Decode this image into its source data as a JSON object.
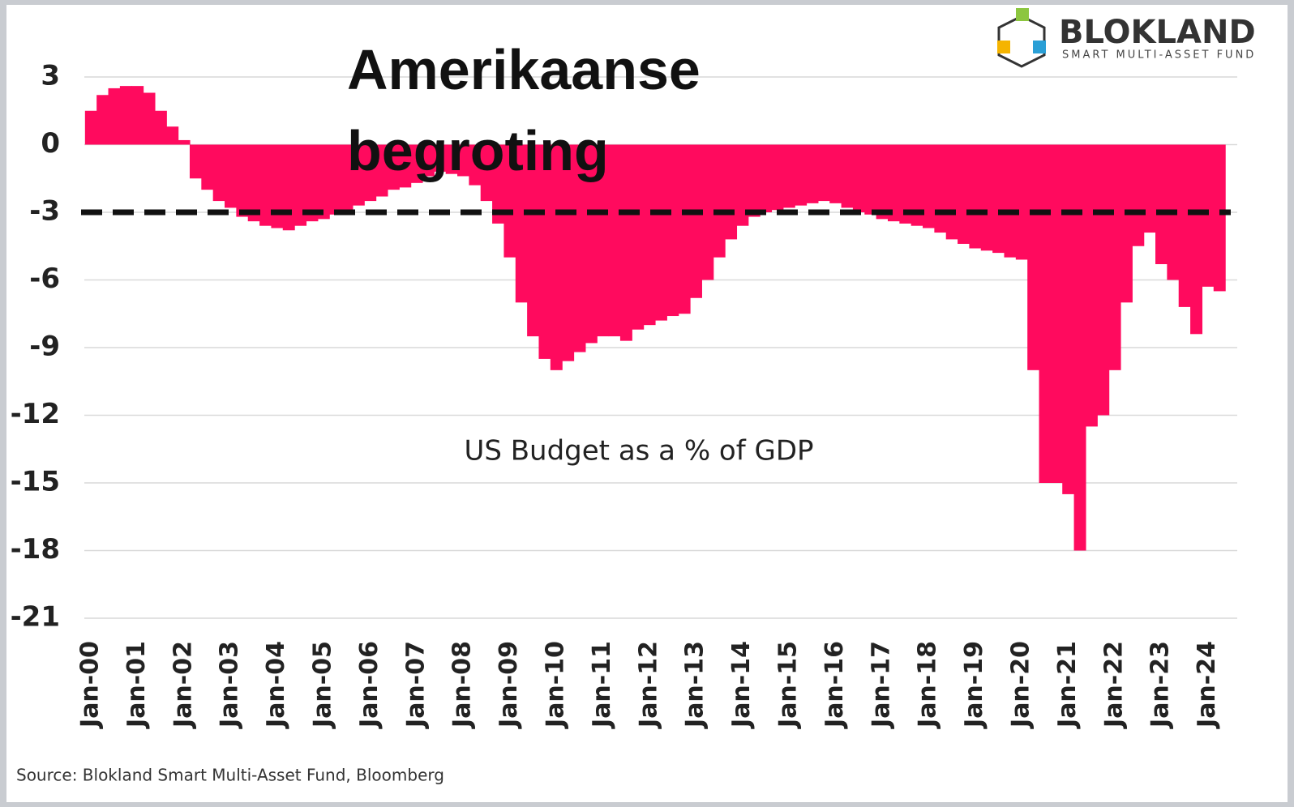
{
  "chart_data": {
    "type": "bar",
    "title": "Amerikaanse begroting",
    "annotation": "US Budget as a % of GDP",
    "source": "Source: Blokland Smart Multi-Asset Fund, Bloomberg",
    "logo": {
      "name": "BLOKLAND",
      "tagline": "SMART MULTI-ASSET FUND"
    },
    "categories": [
      "Jan-00",
      null,
      null,
      null,
      "Jan-01",
      null,
      null,
      null,
      "Jan-02",
      null,
      null,
      null,
      "Jan-03",
      null,
      null,
      null,
      "Jan-04",
      null,
      null,
      null,
      "Jan-05",
      null,
      null,
      null,
      "Jan-06",
      null,
      null,
      null,
      "Jan-07",
      null,
      null,
      null,
      "Jan-08",
      null,
      null,
      null,
      "Jan-09",
      null,
      null,
      null,
      "Jan-10",
      null,
      null,
      null,
      "Jan-11",
      null,
      null,
      null,
      "Jan-12",
      null,
      null,
      null,
      "Jan-13",
      null,
      null,
      null,
      "Jan-14",
      null,
      null,
      null,
      "Jan-15",
      null,
      null,
      null,
      "Jan-16",
      null,
      null,
      null,
      "Jan-17",
      null,
      null,
      null,
      "Jan-18",
      null,
      null,
      null,
      "Jan-19",
      null,
      null,
      null,
      "Jan-20",
      null,
      null,
      null,
      "Jan-21",
      null,
      null,
      null,
      "Jan-22",
      null,
      null,
      null,
      "Jan-23",
      null,
      null,
      null,
      "Jan-24",
      null
    ],
    "values": [
      1.5,
      2.2,
      2.5,
      2.6,
      2.6,
      2.3,
      1.5,
      0.8,
      0.2,
      -1.5,
      -2.0,
      -2.5,
      -2.8,
      -3.2,
      -3.4,
      -3.6,
      -3.7,
      -3.8,
      -3.6,
      -3.4,
      -3.3,
      -3.1,
      -2.9,
      -2.7,
      -2.5,
      -2.3,
      -2.0,
      -1.9,
      -1.7,
      -1.4,
      -1.2,
      -1.3,
      -1.4,
      -1.8,
      -2.5,
      -3.5,
      -5.0,
      -7.0,
      -8.5,
      -9.5,
      -10.0,
      -9.6,
      -9.2,
      -8.8,
      -8.5,
      -8.5,
      -8.7,
      -8.2,
      -8.0,
      -7.8,
      -7.6,
      -7.5,
      -6.8,
      -6.0,
      -5.0,
      -4.2,
      -3.6,
      -3.2,
      -3.0,
      -2.9,
      -2.8,
      -2.7,
      -2.6,
      -2.5,
      -2.6,
      -2.8,
      -3.0,
      -3.1,
      -3.3,
      -3.4,
      -3.5,
      -3.6,
      -3.7,
      -3.9,
      -4.2,
      -4.4,
      -4.6,
      -4.7,
      -4.8,
      -5.0,
      -5.1,
      -10.0,
      -15.0,
      -15.0,
      -15.5,
      -18.0,
      -12.5,
      -12.0,
      -10.0,
      -7.0,
      -4.5,
      -3.9,
      -5.3,
      -6.0,
      -7.2,
      -8.4,
      -6.3,
      -6.5
    ],
    "color": "#ff0a5e",
    "ylim": [
      -21,
      3
    ],
    "yticks": [
      3,
      0,
      -3,
      -6,
      -9,
      -12,
      -15,
      -18,
      -21
    ],
    "grid": true,
    "reference_line": -3
  }
}
